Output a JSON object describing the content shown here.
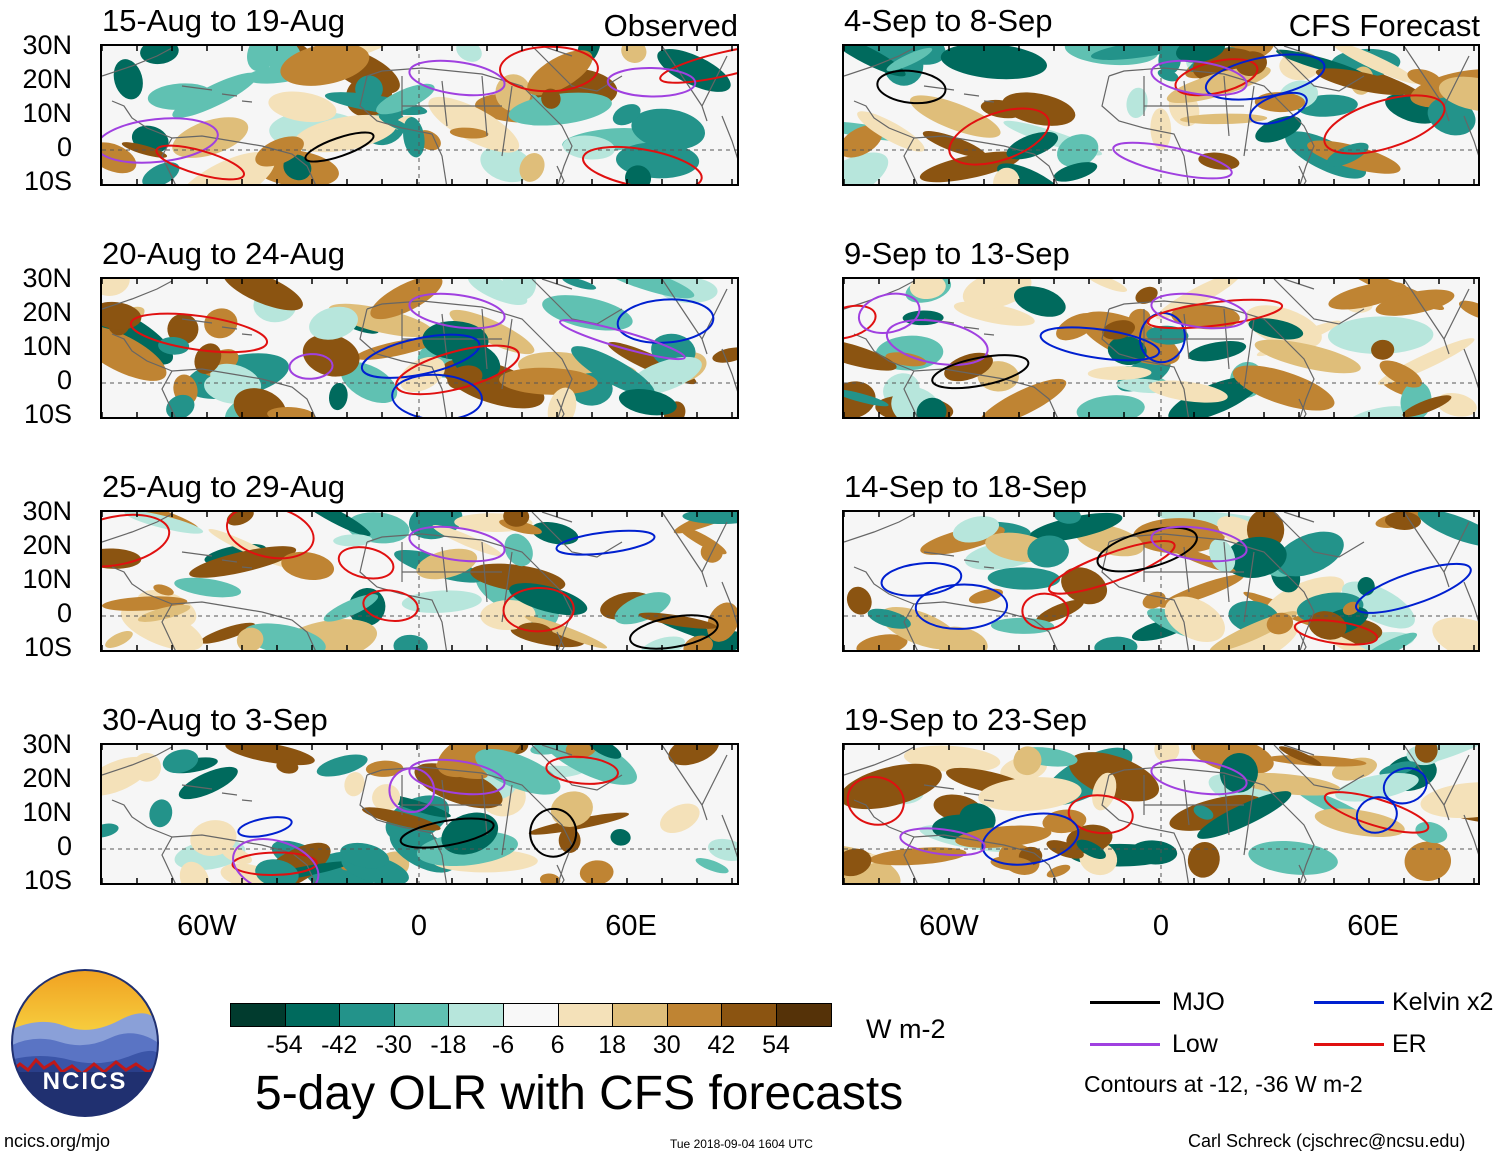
{
  "observed_label": "Observed",
  "forecast_label": "CFS Forecast",
  "lat_labels": [
    "30N",
    "20N",
    "10N",
    "0",
    "10S"
  ],
  "lon_labels": [
    "60W",
    "0",
    "60E"
  ],
  "observed_panels": [
    {
      "period": "15-Aug to 19-Aug"
    },
    {
      "period": "20-Aug to 24-Aug"
    },
    {
      "period": "25-Aug to 29-Aug"
    },
    {
      "period": "30-Aug to 3-Sep"
    }
  ],
  "forecast_panels": [
    {
      "period": "4-Sep to 8-Sep"
    },
    {
      "period": "9-Sep to 13-Sep"
    },
    {
      "period": "14-Sep to 18-Sep"
    },
    {
      "period": "19-Sep to 23-Sep"
    }
  ],
  "colorbar": {
    "ticks": [
      "-54",
      "-42",
      "-30",
      "-18",
      "-6",
      "6",
      "18",
      "30",
      "42",
      "54"
    ],
    "colors": [
      "#013b2e",
      "#006a5d",
      "#23938a",
      "#60c1b2",
      "#b7e6dc",
      "#f8f8f8",
      "#f4e1b9",
      "#dfbe7a",
      "#bf8433",
      "#8b5411",
      "#553208"
    ],
    "unit": "W m-2"
  },
  "legend": {
    "items": [
      {
        "label": "MJO",
        "color": "#000000"
      },
      {
        "label": "Kelvin x2",
        "color": "#0020d0"
      },
      {
        "label": "Low",
        "color": "#a040e0"
      },
      {
        "label": "ER",
        "color": "#e01010"
      }
    ],
    "note": "Contours at -12, -36 W m-2"
  },
  "title": "5-day OLR with CFS forecasts",
  "logo_text": "NCICS",
  "footer": {
    "left": "ncics.org/mjo",
    "center": "Tue 2018-09-04 1604 UTC",
    "right": "Carl Schreck (cjschrec@ncsu.edu)"
  }
}
